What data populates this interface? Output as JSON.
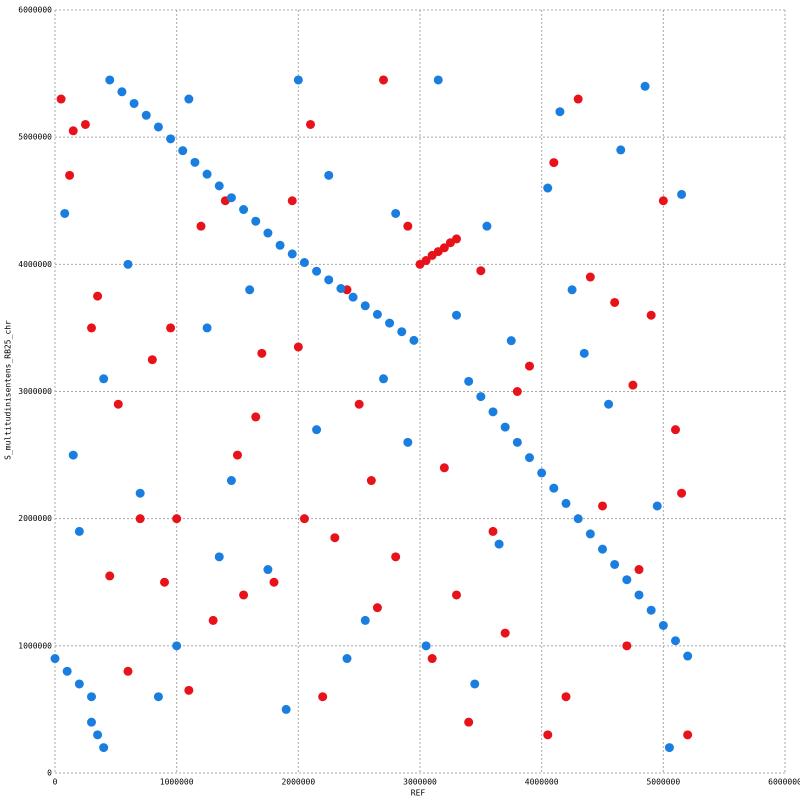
{
  "chart_data": {
    "type": "scatter",
    "x_label": "REF",
    "y_label": "S_multitudinisentens_RB25_chr",
    "xlim": [
      0,
      6000000
    ],
    "ylim": [
      0,
      6000000
    ],
    "xticks": [
      0,
      1000000,
      2000000,
      3000000,
      4000000,
      5000000,
      6000000
    ],
    "yticks": [
      0,
      1000000,
      2000000,
      3000000,
      4000000,
      5000000,
      6000000
    ],
    "grid": true,
    "series": [
      {
        "color": "#e8121a",
        "x": [
          3000000,
          3050000,
          3100000,
          3150000,
          3200000,
          3250000,
          3300000,
          50000,
          120000,
          300000,
          520000,
          700000,
          900000,
          1100000,
          1300000,
          1500000,
          1700000,
          1950000,
          2100000,
          2400000,
          2600000,
          2800000,
          3100000,
          3400000,
          3600000,
          3900000,
          4100000,
          4300000,
          4500000,
          4700000,
          4900000,
          5100000,
          5200000,
          250000,
          450000,
          800000,
          1200000,
          1650000,
          2000000,
          2300000,
          2700000,
          3200000,
          3700000,
          4200000,
          4600000,
          5000000,
          150000,
          600000,
          1000000,
          1400000,
          1800000,
          2200000,
          2500000,
          2900000,
          3300000,
          3800000,
          4400000,
          4800000,
          5150000,
          350000,
          950000,
          1550000,
          2050000,
          2650000,
          3500000,
          4050000,
          4750000
        ],
        "y": [
          4000000,
          4030000,
          4070000,
          4100000,
          4130000,
          4170000,
          4200000,
          5300000,
          4700000,
          3500000,
          2900000,
          2000000,
          1500000,
          650000,
          1200000,
          2500000,
          3300000,
          4500000,
          5100000,
          3800000,
          2300000,
          1700000,
          900000,
          400000,
          1900000,
          3200000,
          4800000,
          5300000,
          2100000,
          1000000,
          3600000,
          2700000,
          300000,
          5100000,
          1550000,
          3250000,
          4300000,
          2800000,
          3350000,
          1850000,
          5450000,
          2400000,
          1100000,
          600000,
          3700000,
          4500000,
          5050000,
          800000,
          2000000,
          4500000,
          1500000,
          600000,
          2900000,
          4300000,
          1400000,
          3000000,
          3900000,
          1600000,
          2200000,
          3750000,
          3500000,
          1400000,
          2000000,
          1300000,
          3950000,
          300000,
          3050000
        ],
        "sizes": null
      },
      {
        "color": "#1a7ee0",
        "x": [
          450000,
          550000,
          650000,
          750000,
          850000,
          950000,
          1050000,
          1150000,
          1250000,
          1350000,
          1450000,
          1550000,
          1650000,
          1750000,
          1850000,
          1950000,
          2050000,
          2150000,
          2250000,
          2350000,
          2450000,
          2550000,
          2650000,
          2750000,
          2850000,
          2950000,
          3400000,
          3500000,
          3600000,
          3700000,
          3800000,
          3900000,
          4000000,
          4100000,
          4200000,
          4300000,
          4400000,
          4500000,
          4600000,
          4700000,
          4800000,
          4900000,
          5000000,
          5100000,
          5200000,
          0,
          100000,
          200000,
          300000,
          300000,
          350000,
          400000,
          80000,
          400000,
          700000,
          1100000,
          1350000,
          1600000,
          1900000,
          2250000,
          2550000,
          2900000,
          3150000,
          3450000,
          3750000,
          4050000,
          4350000,
          4650000,
          4950000,
          5150000,
          200000,
          600000,
          1000000,
          1450000,
          2000000,
          2400000,
          2800000,
          3300000,
          3650000,
          4150000,
          4550000,
          5050000,
          150000,
          850000,
          1250000,
          1750000,
          2150000,
          2700000,
          3050000,
          3550000,
          4250000,
          4850000
        ],
        "y": [
          5450000,
          5357000,
          5265000,
          5172000,
          5080000,
          4987000,
          4894000,
          4802000,
          4709000,
          4617000,
          4524000,
          4431000,
          4339000,
          4246000,
          4150000,
          4082000,
          4014000,
          3946000,
          3878000,
          3810000,
          3742000,
          3674000,
          3606000,
          3538000,
          3470000,
          3402000,
          3080000,
          2960000,
          2840000,
          2720000,
          2600000,
          2480000,
          2360000,
          2240000,
          2120000,
          2000000,
          1880000,
          1760000,
          1640000,
          1520000,
          1400000,
          1280000,
          1160000,
          1040000,
          920000,
          900000,
          800000,
          700000,
          600000,
          400000,
          300000,
          200000,
          4400000,
          3100000,
          2200000,
          5300000,
          1700000,
          3800000,
          500000,
          4700000,
          1200000,
          2600000,
          5450000,
          700000,
          3400000,
          4600000,
          3300000,
          4900000,
          2100000,
          4550000,
          1900000,
          4000000,
          1000000,
          2300000,
          5450000,
          900000,
          4400000,
          3600000,
          1800000,
          5200000,
          2900000,
          200000,
          2500000,
          600000,
          3500000,
          1600000,
          2700000,
          3100000,
          1000000,
          4300000,
          3800000,
          5400000
        ],
        "sizes": null
      }
    ]
  }
}
